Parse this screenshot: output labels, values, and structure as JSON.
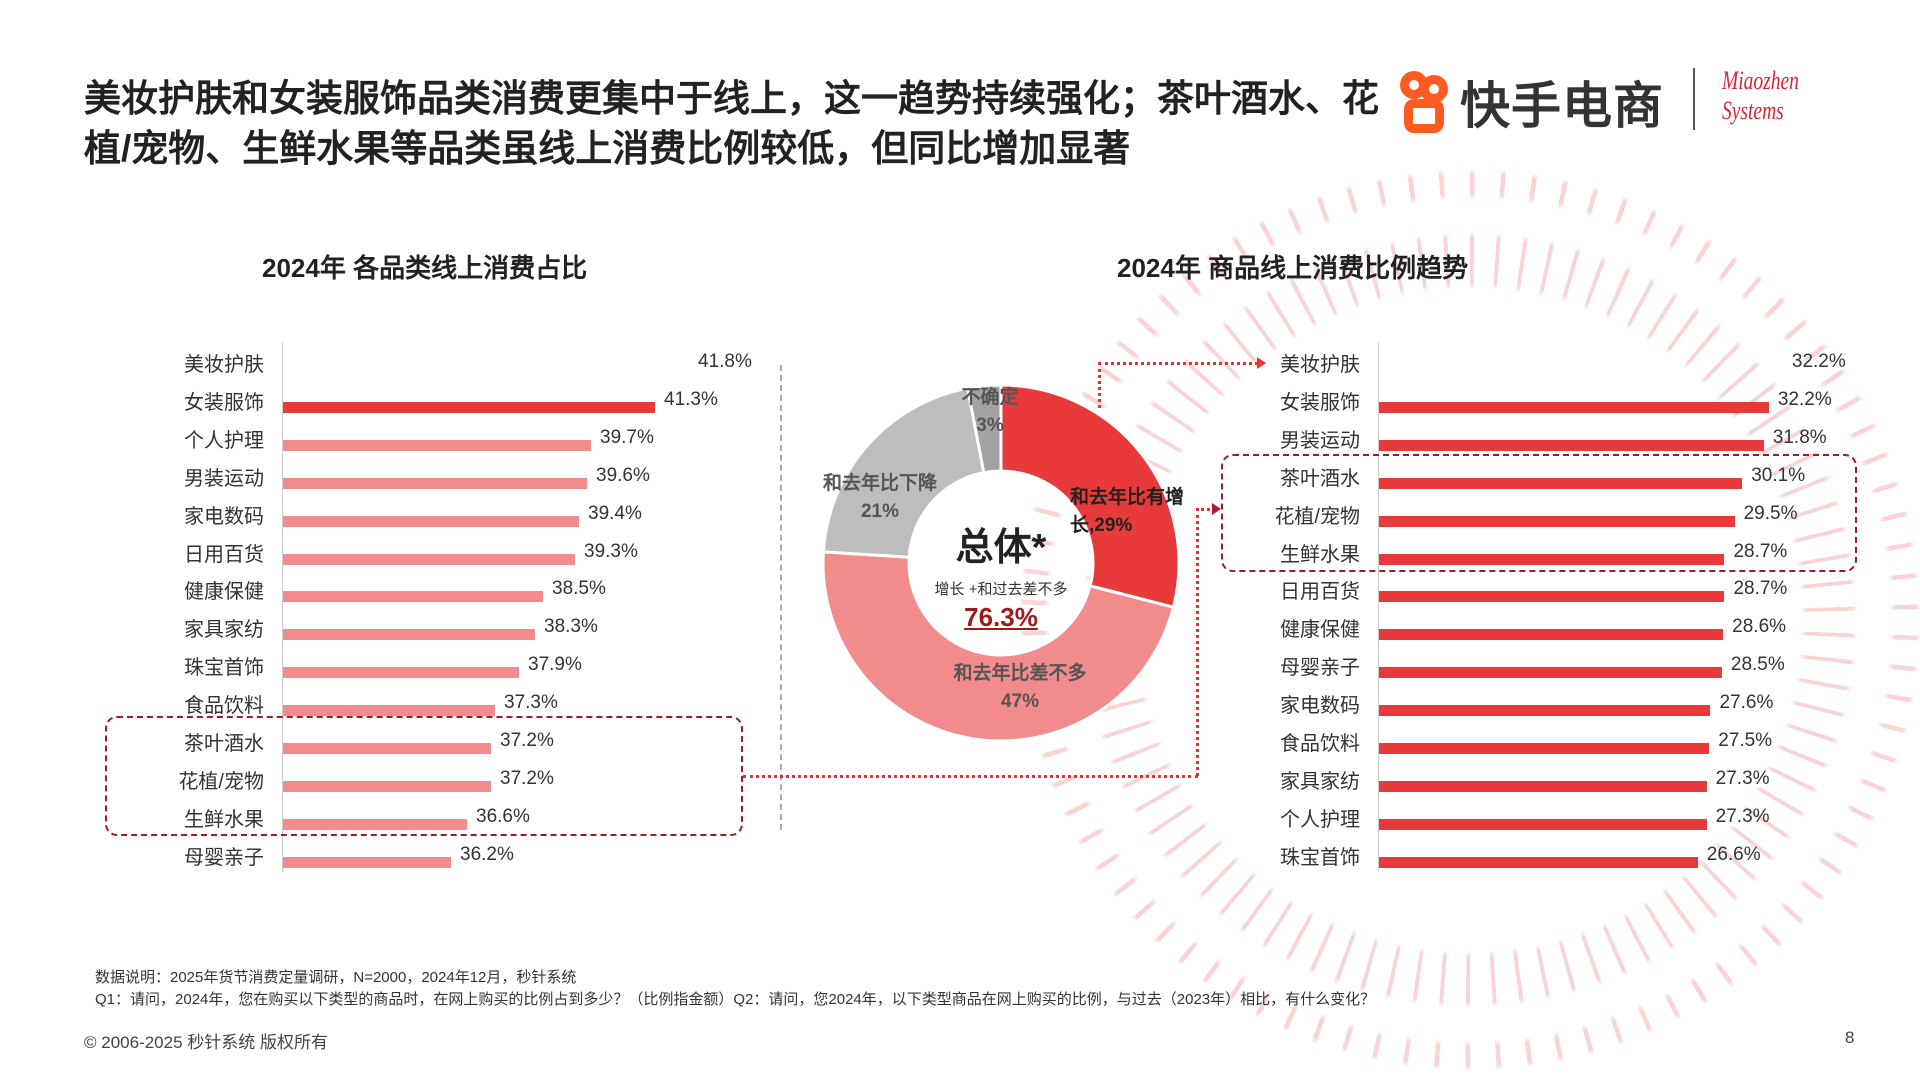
{
  "title": "美妆护肤和女装服饰品类消费更集中于线上，这一趋势持续强化；茶叶酒水、花植/宠物、生鲜水果等品类虽线上消费比例较低，但同比增加显著",
  "logos": {
    "kuaishou": "快手电商",
    "miaozhen_line1": "Miaozhen",
    "miaozhen_line2": "Systems"
  },
  "colors": {
    "accent": "#e83a3a",
    "light": "#f28b8b",
    "gray": "#bdbdbd",
    "dark_gray": "#a3a3a3",
    "box": "#a01a2a"
  },
  "chart_data": [
    {
      "type": "bar",
      "orientation": "horizontal",
      "title": "2024年 各品类线上消费占比",
      "categories": [
        "美妆护肤",
        "女装服饰",
        "个人护理",
        "男装运动",
        "家电数码",
        "日用百货",
        "健康保健",
        "家具家纺",
        "珠宝首饰",
        "食品饮料",
        "茶叶酒水",
        "花植/宠物",
        "生鲜水果",
        "母婴亲子"
      ],
      "values": [
        41.8,
        41.3,
        39.7,
        39.6,
        39.4,
        39.3,
        38.5,
        38.3,
        37.9,
        37.3,
        37.2,
        37.2,
        36.6,
        36.2
      ],
      "labels": [
        "41.8%",
        "41.3%",
        "39.7%",
        "39.6%",
        "39.4%",
        "39.3%",
        "38.5%",
        "38.3%",
        "37.9%",
        "37.3%",
        "37.2%",
        "37.2%",
        "36.6%",
        "36.2%"
      ],
      "highlighted": [
        "茶叶酒水",
        "花植/宠物",
        "生鲜水果"
      ],
      "unit": "%"
    },
    {
      "type": "pie",
      "variant": "donut",
      "center_title": "总体*",
      "center_subtitle": "增长 +和过去差不多",
      "center_value": "76.3%",
      "slices": [
        {
          "name": "和去年比有增长",
          "label": "和去年比有增长,29%",
          "value": 29
        },
        {
          "name": "和去年比差不多",
          "label": "和去年比差不多",
          "value": 47,
          "value_label": "47%"
        },
        {
          "name": "和去年比下降",
          "label": "和去年比下降",
          "value": 21,
          "value_label": "21%"
        },
        {
          "name": "不确定",
          "label": "不确定",
          "value": 3,
          "value_label": "3%"
        }
      ]
    },
    {
      "type": "bar",
      "orientation": "horizontal",
      "title": "2024年 商品线上消费比例趋势",
      "categories": [
        "美妆护肤",
        "女装服饰",
        "男装运动",
        "茶叶酒水",
        "花植/宠物",
        "生鲜水果",
        "日用百货",
        "健康保健",
        "母婴亲子",
        "家电数码",
        "食品饮料",
        "家具家纺",
        "个人护理",
        "珠宝首饰"
      ],
      "values": [
        32.2,
        32.2,
        31.8,
        30.1,
        29.5,
        28.7,
        28.7,
        28.6,
        28.5,
        27.6,
        27.5,
        27.3,
        27.3,
        26.6
      ],
      "labels": [
        "32.2%",
        "32.2%",
        "31.8%",
        "30.1%",
        "29.5%",
        "28.7%",
        "28.7%",
        "28.6%",
        "28.5%",
        "27.6%",
        "27.5%",
        "27.3%",
        "27.3%",
        "26.6%"
      ],
      "highlighted": [
        "茶叶酒水",
        "花植/宠物",
        "生鲜水果"
      ],
      "unit": "%"
    }
  ],
  "footer": {
    "note": "数据说明：2025年货节消费定量调研，N=2000，2024年12月，秒针系统",
    "questions": "Q1：请问，2024年，您在购买以下类型的商品时，在网上购买的比例占到多少？（比例指金额）Q2：请问，您2024年，以下类型商品在网上购买的比例，与过去（2023年）相比，有什么变化？",
    "copyright": "© 2006-2025 秒针系统 版权所有",
    "page": "8"
  }
}
